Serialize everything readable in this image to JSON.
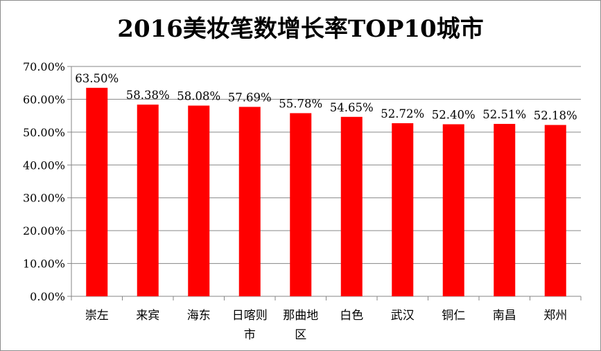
{
  "chart_data": {
    "type": "bar",
    "title": "2016美妆笔数增长率TOP10城市",
    "categories": [
      "崇左",
      "来宾",
      "海东",
      "日喀则市",
      "那曲地区",
      "白色",
      "武汉",
      "铜仁",
      "南昌",
      "郑州"
    ],
    "category_lines": [
      [
        "崇左"
      ],
      [
        "来宾"
      ],
      [
        "海东"
      ],
      [
        "日喀则",
        "市"
      ],
      [
        "那曲地",
        "区"
      ],
      [
        "白色"
      ],
      [
        "武汉"
      ],
      [
        "铜仁"
      ],
      [
        "南昌"
      ],
      [
        "郑州"
      ]
    ],
    "values": [
      63.5,
      58.38,
      58.08,
      57.69,
      55.78,
      54.65,
      52.72,
      52.4,
      52.51,
      52.18
    ],
    "data_labels": [
      "63.50%",
      "58.38%",
      "58.08%",
      "57.69%",
      "55.78%",
      "54.65%",
      "52.72%",
      "52.40%",
      "52.51%",
      "52.18%"
    ],
    "yticks": [
      "0.00%",
      "10.00%",
      "20.00%",
      "30.00%",
      "40.00%",
      "50.00%",
      "60.00%",
      "70.00%"
    ],
    "ylim": [
      0,
      70
    ],
    "xlabel": "",
    "ylabel": "",
    "grid": true,
    "legend": "none",
    "bar_color": "#ff0000",
    "grid_color": "#868686"
  }
}
